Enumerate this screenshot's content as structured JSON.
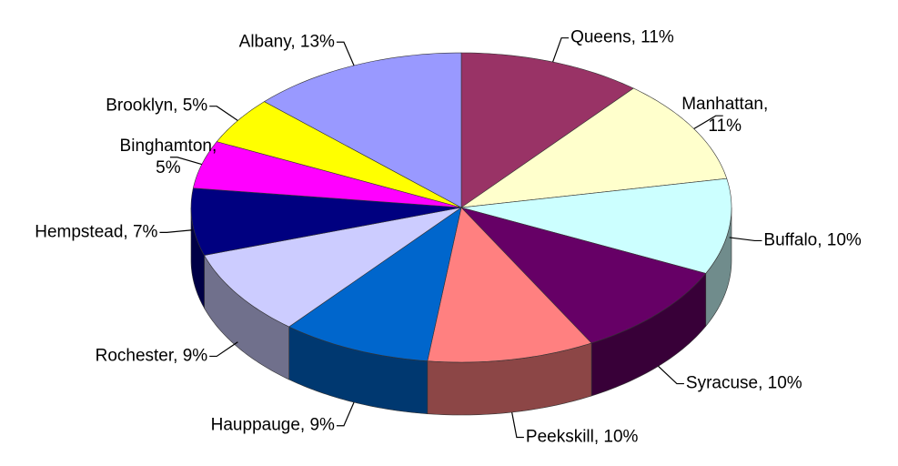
{
  "chart_data": {
    "type": "pie3d",
    "labels": [
      "Queens, 11%",
      "Manhattan, 11%",
      "Buffalo, 10%",
      "Syracuse, 10%",
      "Peekskill, 10%",
      "Hauppauge, 9%",
      "Rochester, 9%",
      "Hempstead, 7%",
      "Binghamton, 5%",
      "Brooklyn, 5%",
      "Albany, 13%"
    ],
    "values": [
      11,
      11,
      10,
      10,
      10,
      9,
      9,
      7,
      5,
      5,
      13
    ],
    "colors": [
      "#993366",
      "#ffffcc",
      "#ccffff",
      "#660066",
      "#ff8080",
      "#0066cc",
      "#ccccff",
      "#000080",
      "#ff00ff",
      "#ffff00",
      "#9999ff"
    ]
  }
}
